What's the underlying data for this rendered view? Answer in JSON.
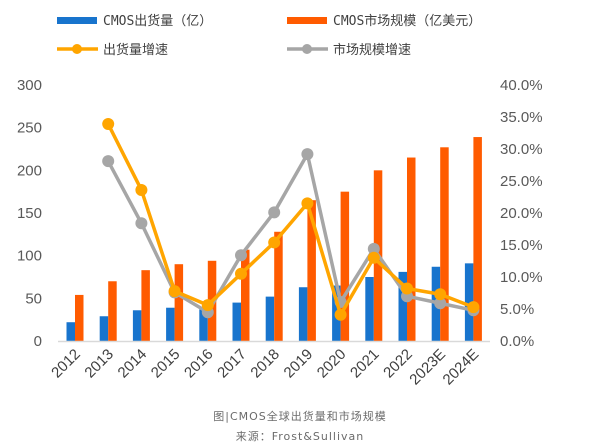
{
  "chart_data": {
    "type": "bar",
    "categories": [
      "2012",
      "2013",
      "2014",
      "2015",
      "2016",
      "2017",
      "2018",
      "2019",
      "2020",
      "2021",
      "2022",
      "2023E",
      "2024E"
    ],
    "series": [
      {
        "name": "CMOS出货量（亿）",
        "type": "bar",
        "axis": "left",
        "color": "#1874CD",
        "values": [
          22,
          29,
          36,
          39,
          37,
          45,
          52,
          63,
          65,
          75,
          81,
          87,
          91
        ]
      },
      {
        "name": "CMOS市场规模（亿美元）",
        "type": "bar",
        "axis": "left",
        "color": "#FF5B00",
        "values": [
          54,
          70,
          83,
          90,
          94,
          107,
          128,
          165,
          175,
          200,
          215,
          227,
          239
        ]
      },
      {
        "name": "出货量增速",
        "type": "line",
        "axis": "right",
        "color": "#FFA500",
        "values": [
          null,
          33.9,
          23.6,
          7.8,
          5.6,
          10.5,
          15.4,
          21.5,
          4.1,
          13.0,
          8.2,
          7.3,
          5.3
        ]
      },
      {
        "name": "市场规模增速",
        "type": "line",
        "axis": "right",
        "color": "#A6A6A6",
        "values": [
          null,
          28.1,
          18.4,
          7.6,
          4.5,
          13.4,
          20.1,
          29.2,
          6.1,
          14.4,
          7.0,
          5.9,
          4.8
        ]
      }
    ],
    "left_axis": {
      "ylim": [
        0,
        300
      ],
      "ticks": [
        "0",
        "50",
        "100",
        "150",
        "200",
        "250",
        "300"
      ]
    },
    "right_axis": {
      "ylim": [
        0,
        40
      ],
      "ticks": [
        "0.0%",
        "5.0%",
        "10.0%",
        "15.0%",
        "20.0%",
        "25.0%",
        "30.0%",
        "35.0%",
        "40.0%"
      ]
    },
    "legend_position": "top",
    "grid": false,
    "title": "",
    "xlabel": "",
    "ylabel": ""
  },
  "caption": {
    "title": "图|CMOS全球出货量和市场规模",
    "source": "来源：Frost&Sullivan"
  }
}
